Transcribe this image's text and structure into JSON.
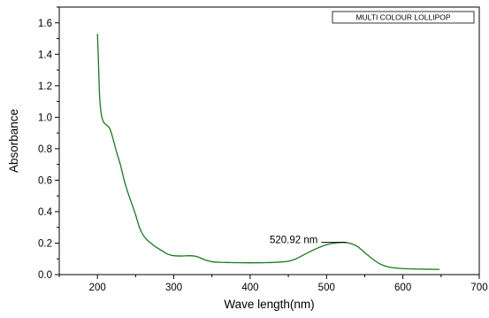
{
  "chart_data": {
    "type": "line",
    "title": "",
    "xlabel": "Wave length(nm)",
    "ylabel": "Absorbance",
    "xlim": [
      150,
      700
    ],
    "ylim": [
      0.0,
      1.7
    ],
    "x_ticks": [
      "200",
      "300",
      "400",
      "500",
      "600",
      "700"
    ],
    "y_ticks": [
      "0.0",
      "0.2",
      "0.4",
      "0.6",
      "0.8",
      "1.0",
      "1.2",
      "1.4",
      "1.6"
    ],
    "grid": false,
    "legend_position": "top-right",
    "series": [
      {
        "name": "MULTI COLOUR LOLLIPOP",
        "color": "#1a7a1a",
        "points": [
          [
            200,
            1.53
          ],
          [
            201,
            1.4
          ],
          [
            202,
            1.25
          ],
          [
            203,
            1.12
          ],
          [
            205,
            1.02
          ],
          [
            208,
            0.97
          ],
          [
            212,
            0.95
          ],
          [
            216,
            0.93
          ],
          [
            220,
            0.87
          ],
          [
            225,
            0.78
          ],
          [
            230,
            0.7
          ],
          [
            235,
            0.6
          ],
          [
            240,
            0.52
          ],
          [
            245,
            0.45
          ],
          [
            250,
            0.38
          ],
          [
            255,
            0.3
          ],
          [
            260,
            0.25
          ],
          [
            265,
            0.22
          ],
          [
            270,
            0.2
          ],
          [
            275,
            0.18
          ],
          [
            280,
            0.165
          ],
          [
            285,
            0.15
          ],
          [
            290,
            0.135
          ],
          [
            295,
            0.125
          ],
          [
            300,
            0.12
          ],
          [
            310,
            0.118
          ],
          [
            320,
            0.12
          ],
          [
            330,
            0.115
          ],
          [
            340,
            0.095
          ],
          [
            350,
            0.082
          ],
          [
            360,
            0.078
          ],
          [
            370,
            0.077
          ],
          [
            380,
            0.076
          ],
          [
            400,
            0.075
          ],
          [
            420,
            0.076
          ],
          [
            440,
            0.08
          ],
          [
            450,
            0.085
          ],
          [
            460,
            0.1
          ],
          [
            470,
            0.125
          ],
          [
            480,
            0.15
          ],
          [
            490,
            0.172
          ],
          [
            500,
            0.19
          ],
          [
            510,
            0.2
          ],
          [
            520.92,
            0.205
          ],
          [
            530,
            0.2
          ],
          [
            540,
            0.18
          ],
          [
            550,
            0.14
          ],
          [
            560,
            0.1
          ],
          [
            570,
            0.068
          ],
          [
            580,
            0.05
          ],
          [
            590,
            0.042
          ],
          [
            600,
            0.038
          ],
          [
            620,
            0.035
          ],
          [
            648,
            0.033
          ]
        ]
      }
    ],
    "annotations": [
      {
        "text": "520.92 nm",
        "x": 520.92,
        "y": 0.205
      }
    ]
  }
}
